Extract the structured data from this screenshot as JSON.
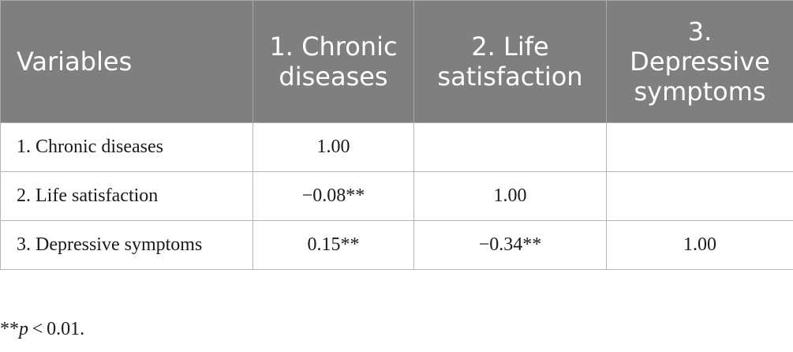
{
  "table": {
    "headers": [
      "Variables",
      "1. Chronic diseases",
      "2. Life satisfaction",
      "3. Depressive symptoms"
    ],
    "rows": [
      {
        "variable": "1. Chronic diseases",
        "values": [
          "1.00",
          "",
          ""
        ]
      },
      {
        "variable": "2. Life satisfaction",
        "values": [
          "−0.08**",
          "1.00",
          ""
        ]
      },
      {
        "variable": "3. Depressive symptoms",
        "values": [
          "0.15**",
          "−0.34**",
          "1.00"
        ]
      }
    ]
  },
  "footnote": {
    "prefix": "**",
    "symbol": "p",
    "rest": " < 0.01."
  }
}
